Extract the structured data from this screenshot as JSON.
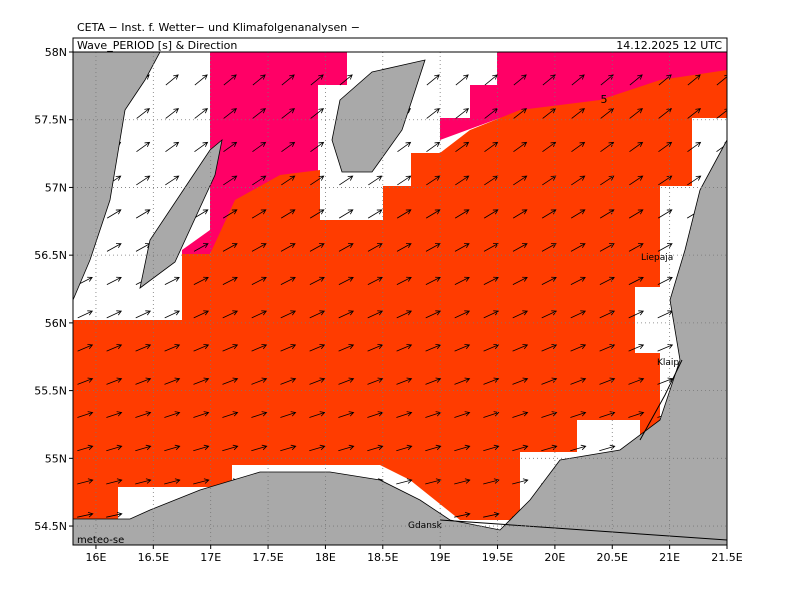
{
  "header": "CETA − Inst. f. Wetter− und Klimafolgenanalysen −",
  "title": "Wave_PERIOD [s] & Direction",
  "date": "14.12.2025 12 UTC",
  "credit": "meteo-se",
  "contour_label": "5",
  "places": [
    "Liepaja",
    "Klaip",
    "Gdansk"
  ],
  "map": {
    "xlim": [
      15.8,
      21.5
    ],
    "ylim": [
      54.36,
      58
    ],
    "xticks": [
      {
        "value": 16,
        "label": "16E"
      },
      {
        "value": 16.5,
        "label": "16.5E"
      },
      {
        "value": 17,
        "label": "17E"
      },
      {
        "value": 17.5,
        "label": "17.5E"
      },
      {
        "value": 18,
        "label": "18E"
      },
      {
        "value": 18.5,
        "label": "18.5E"
      },
      {
        "value": 19,
        "label": "19E"
      },
      {
        "value": 19.5,
        "label": "19.5E"
      },
      {
        "value": 20,
        "label": "20E"
      },
      {
        "value": 20.5,
        "label": "20.5E"
      },
      {
        "value": 21,
        "label": "21E"
      },
      {
        "value": 21.5,
        "label": "21.5E"
      }
    ],
    "yticks": [
      {
        "value": 54.5,
        "label": "54.5N"
      },
      {
        "value": 55,
        "label": "55N"
      },
      {
        "value": 55.5,
        "label": "55.5N"
      },
      {
        "value": 56,
        "label": "56N"
      },
      {
        "value": 56.5,
        "label": "56.5N"
      },
      {
        "value": 57,
        "label": "57N"
      },
      {
        "value": 57.5,
        "label": "57.5N"
      },
      {
        "value": 58,
        "label": "58N"
      }
    ]
  }
}
